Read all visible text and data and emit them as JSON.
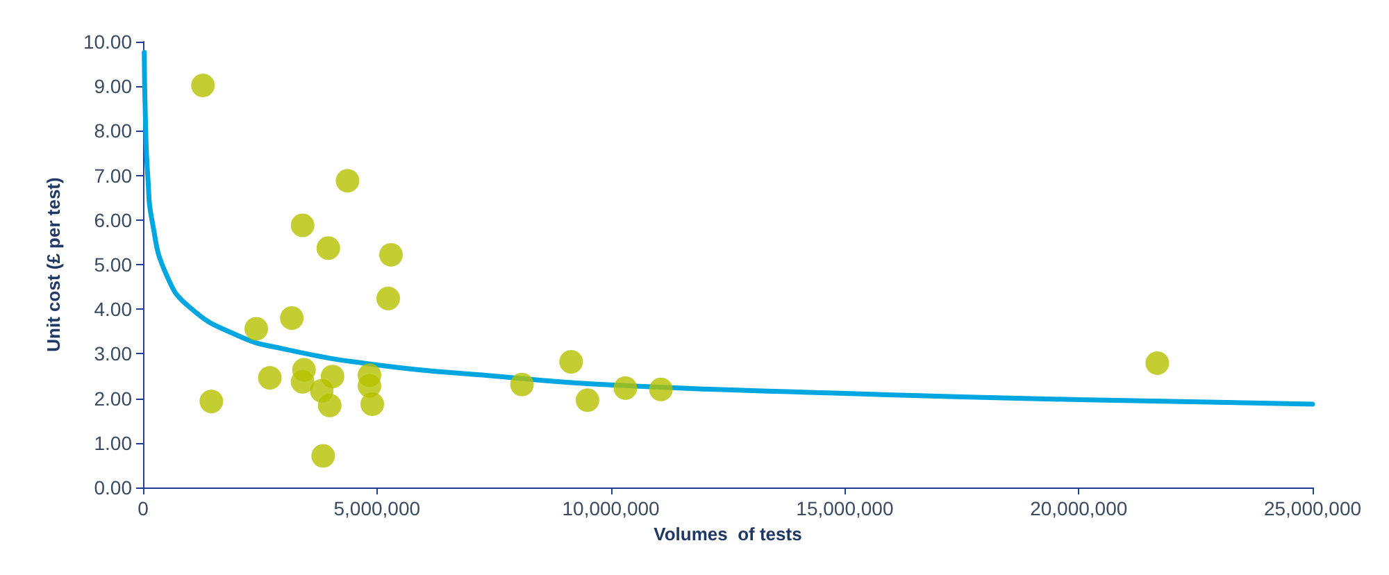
{
  "chart_data": {
    "type": "scatter",
    "xlabel": "Volumes  of tests",
    "ylabel": "Unit cost (£ per test)",
    "marker": "circle",
    "grid": false,
    "xlim": [
      0,
      25000000
    ],
    "xticks": [
      {
        "value": 0,
        "label": "0"
      },
      {
        "value": 5000000,
        "label": "5,000,000"
      },
      {
        "value": 10000000,
        "label": "10,000,000"
      },
      {
        "value": 15000000,
        "label": "15,000,000"
      },
      {
        "value": 20000000,
        "label": "20,000,000"
      },
      {
        "value": 25000000,
        "label": "25,000,000"
      }
    ],
    "ylim": [
      0,
      10
    ],
    "yticks": [
      {
        "value": 0,
        "label": "0.00"
      },
      {
        "value": 1,
        "label": "1.00"
      },
      {
        "value": 2,
        "label": "2.00"
      },
      {
        "value": 3,
        "label": "3.00"
      },
      {
        "value": 4,
        "label": "4.00"
      },
      {
        "value": 5,
        "label": "5.00"
      },
      {
        "value": 6,
        "label": "6.00"
      },
      {
        "value": 7,
        "label": "7.00"
      },
      {
        "value": 8,
        "label": "8.00"
      },
      {
        "value": 9,
        "label": "9.00"
      },
      {
        "value": 10,
        "label": "10.00"
      }
    ],
    "series": [
      {
        "color": "#b5c200",
        "x": [
          1280000,
          1460000,
          2420000,
          2710000,
          3180000,
          3410000,
          3440000,
          3410000,
          3820000,
          3850000,
          3960000,
          3990000,
          4050000,
          4370000,
          4840000,
          4840000,
          4900000,
          5240000,
          5300000,
          8100000,
          9150000,
          9500000,
          10310000,
          11070000,
          21680000
        ],
        "values": [
          9.02,
          1.93,
          3.56,
          2.46,
          3.8,
          5.88,
          2.64,
          2.37,
          2.17,
          0.71,
          5.37,
          1.84,
          2.49,
          6.88,
          2.52,
          2.28,
          1.87,
          4.24,
          5.22,
          2.31,
          2.82,
          1.96,
          2.23,
          2.2,
          2.79
        ]
      },
      {
        "type": "line",
        "color": "#00a6e0",
        "marker": "none",
        "line_style": "solid",
        "x": [
          25000,
          50000,
          100000,
          200000,
          500000,
          1000000,
          2000000,
          3000000,
          5000000,
          7500000,
          10000000,
          15000000,
          20000000,
          25000000
        ],
        "values": [
          9.76,
          8.27,
          7.0,
          5.94,
          4.77,
          4.04,
          3.42,
          3.11,
          2.75,
          2.5,
          2.3,
          2.11,
          1.97,
          1.87
        ]
      }
    ]
  }
}
